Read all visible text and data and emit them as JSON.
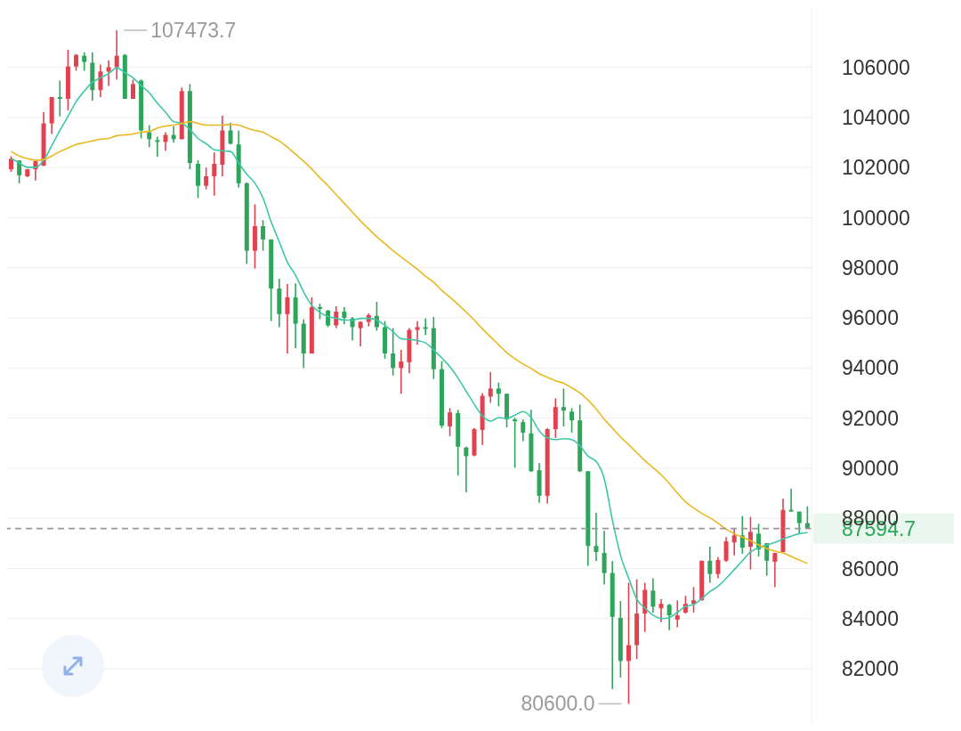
{
  "chart_data": {
    "type": "candlestick",
    "categories": [
      null,
      null,
      null,
      null,
      null,
      null,
      null,
      null,
      null,
      null,
      null,
      null,
      null,
      null,
      null,
      null,
      null,
      null,
      null,
      null,
      null,
      null,
      null,
      null,
      null,
      null,
      null,
      null,
      null,
      null,
      null,
      null,
      null,
      null,
      null,
      null,
      null,
      null,
      null,
      null,
      null,
      null,
      null,
      null,
      null,
      null,
      null,
      null,
      null,
      null,
      null,
      null,
      null,
      null,
      null,
      null,
      null,
      null,
      null,
      null,
      null,
      null,
      null,
      null,
      null,
      null,
      null,
      null,
      null,
      null,
      null,
      null,
      null,
      null,
      null,
      null,
      null,
      null,
      null,
      null,
      null,
      null,
      null,
      null,
      null,
      null,
      null,
      null,
      null,
      null,
      null,
      null,
      null,
      null,
      null,
      null,
      null,
      null,
      null
    ],
    "ohlc": [
      [
        101930,
        102450,
        101830,
        102350
      ],
      [
        102280,
        102290,
        101370,
        101690
      ],
      [
        101650,
        101950,
        101620,
        101930
      ],
      [
        101930,
        102280,
        101480,
        102250
      ],
      [
        102070,
        104210,
        102070,
        103760
      ],
      [
        103760,
        104810,
        103340,
        104810
      ],
      [
        104810,
        105470,
        104040,
        104740
      ],
      [
        104740,
        106700,
        104280,
        106030
      ],
      [
        106030,
        106530,
        105860,
        106490
      ],
      [
        106460,
        106600,
        105860,
        106210
      ],
      [
        106180,
        106600,
        104670,
        105090
      ],
      [
        105090,
        106110,
        104810,
        105830
      ],
      [
        105830,
        106280,
        105260,
        106000
      ],
      [
        106000,
        107473.7,
        105510,
        106460
      ],
      [
        106490,
        106530,
        104740,
        104740
      ],
      [
        104740,
        105510,
        104740,
        105330
      ],
      [
        105470,
        105510,
        103160,
        103480
      ],
      [
        103410,
        103690,
        102810,
        103130
      ],
      [
        103090,
        103230,
        102430,
        103020
      ],
      [
        103020,
        103410,
        102670,
        103300
      ],
      [
        103300,
        103650,
        102990,
        103130
      ],
      [
        103130,
        105190,
        103130,
        105050
      ],
      [
        105050,
        105330,
        101930,
        102180
      ],
      [
        102150,
        102290,
        100780,
        101270
      ],
      [
        101270,
        102000,
        101130,
        101650
      ],
      [
        101650,
        102600,
        100880,
        102150
      ],
      [
        102110,
        104070,
        101650,
        103480
      ],
      [
        103480,
        103790,
        102920,
        102950
      ],
      [
        102920,
        103480,
        101200,
        101370
      ],
      [
        101370,
        101410,
        98150,
        98680
      ],
      [
        98680,
        100530,
        97970,
        99660
      ],
      [
        99660,
        99900,
        98680,
        99130
      ],
      [
        99130,
        99130,
        95870,
        97170
      ],
      [
        97170,
        97560,
        95630,
        96150
      ],
      [
        96150,
        97350,
        94580,
        96820
      ],
      [
        96820,
        97380,
        94790,
        95770
      ],
      [
        95770,
        95940,
        94000,
        94580
      ],
      [
        94580,
        96820,
        94580,
        96430
      ],
      [
        96430,
        96570,
        95950,
        96360
      ],
      [
        96290,
        96320,
        95630,
        95700
      ],
      [
        95700,
        96460,
        95590,
        96250
      ],
      [
        96250,
        96430,
        95740,
        96000
      ],
      [
        95980,
        96040,
        95100,
        95630
      ],
      [
        95590,
        95870,
        94860,
        95840
      ],
      [
        95840,
        96180,
        95660,
        96110
      ],
      [
        96080,
        96640,
        95490,
        95630
      ],
      [
        95630,
        95870,
        94370,
        94580
      ],
      [
        94580,
        95590,
        93700,
        94000
      ],
      [
        94000,
        94720,
        92970,
        94260
      ],
      [
        94230,
        95590,
        93790,
        95520
      ],
      [
        95520,
        95870,
        94930,
        95630
      ],
      [
        95630,
        95980,
        95310,
        95560
      ],
      [
        95590,
        96040,
        93560,
        93950
      ],
      [
        93950,
        94280,
        91600,
        91700
      ],
      [
        91670,
        92400,
        91280,
        92230
      ],
      [
        92200,
        92330,
        89710,
        90860
      ],
      [
        90830,
        90860,
        89040,
        90480
      ],
      [
        90510,
        91600,
        90480,
        91560
      ],
      [
        91530,
        93000,
        90930,
        92890
      ],
      [
        92860,
        93840,
        92610,
        93180
      ],
      [
        93180,
        93420,
        92470,
        92970
      ],
      [
        92970,
        92970,
        91630,
        91950
      ],
      [
        91950,
        92020,
        90020,
        91880
      ],
      [
        91840,
        91950,
        91080,
        91420
      ],
      [
        91390,
        92330,
        89850,
        89880
      ],
      [
        89920,
        90200,
        88620,
        88900
      ],
      [
        88900,
        91600,
        88590,
        91560
      ],
      [
        91560,
        92790,
        91210,
        92440
      ],
      [
        92440,
        93180,
        91670,
        92300
      ],
      [
        92260,
        92400,
        91420,
        91910
      ],
      [
        91910,
        92540,
        89850,
        89880
      ],
      [
        89880,
        89880,
        86110,
        86900
      ],
      [
        86900,
        88230,
        86300,
        86660
      ],
      [
        86620,
        87500,
        85360,
        85820
      ],
      [
        85820,
        86300,
        81190,
        84070
      ],
      [
        84030,
        84700,
        81650,
        82310
      ],
      [
        82310,
        85430,
        80600,
        82940
      ],
      [
        82940,
        85570,
        82380,
        84200
      ],
      [
        84200,
        85430,
        83470,
        85150
      ],
      [
        85120,
        85610,
        84240,
        84480
      ],
      [
        84410,
        84770,
        83860,
        84590
      ],
      [
        84550,
        84590,
        83540,
        84130
      ],
      [
        83960,
        84730,
        83650,
        84130
      ],
      [
        84240,
        84910,
        84200,
        84590
      ],
      [
        84590,
        85260,
        84240,
        84730
      ],
      [
        84730,
        86310,
        84730,
        86310
      ],
      [
        86310,
        86870,
        85430,
        85780
      ],
      [
        85780,
        86450,
        85610,
        86340
      ],
      [
        86310,
        87250,
        86270,
        87080
      ],
      [
        87040,
        87570,
        86520,
        87320
      ],
      [
        87320,
        88090,
        86590,
        86830
      ],
      [
        86870,
        88060,
        85960,
        87460
      ],
      [
        87390,
        87780,
        86480,
        86760
      ],
      [
        87010,
        87010,
        85710,
        86310
      ],
      [
        86270,
        86620,
        85260,
        86620
      ],
      [
        86660,
        88790,
        86660,
        88340
      ],
      [
        88340,
        89180,
        88270,
        88270
      ],
      [
        88270,
        88270,
        87390,
        87810
      ],
      [
        87810,
        88480,
        87594.7,
        87594.7
      ]
    ],
    "colors": [
      "#e0434f",
      "#2ea55a",
      "#e0434f",
      "#e0434f",
      "#e0434f",
      "#e0434f",
      "#2ea55a",
      "#e0434f",
      "#e0434f",
      "#2ea55a",
      "#2ea55a",
      "#e0434f",
      "#e0434f",
      "#e0434f",
      "#2ea55a",
      "#e0434f",
      "#2ea55a",
      "#2ea55a",
      "#2ea55a",
      "#e0434f",
      "#2ea55a",
      "#e0434f",
      "#2ea55a",
      "#2ea55a",
      "#e0434f",
      "#e0434f",
      "#e0434f",
      "#2ea55a",
      "#2ea55a",
      "#2ea55a",
      "#e0434f",
      "#2ea55a",
      "#2ea55a",
      "#2ea55a",
      "#e0434f",
      "#2ea55a",
      "#2ea55a",
      "#e0434f",
      "#2ea55a",
      "#2ea55a",
      "#e0434f",
      "#2ea55a",
      "#2ea55a",
      "#e0434f",
      "#e0434f",
      "#2ea55a",
      "#2ea55a",
      "#2ea55a",
      "#e0434f",
      "#e0434f",
      "#e0434f",
      "#2ea55a",
      "#2ea55a",
      "#2ea55a",
      "#e0434f",
      "#2ea55a",
      "#2ea55a",
      "#e0434f",
      "#e0434f",
      "#e0434f",
      "#2ea55a",
      "#2ea55a",
      "#2ea55a",
      "#2ea55a",
      "#2ea55a",
      "#2ea55a",
      "#e0434f",
      "#e0434f",
      "#2ea55a",
      "#2ea55a",
      "#2ea55a",
      "#2ea55a",
      "#2ea55a",
      "#2ea55a",
      "#2ea55a",
      "#2ea55a",
      "#e0434f",
      "#e0434f",
      "#e0434f",
      "#2ea55a",
      "#e0434f",
      "#2ea55a",
      "#e0434f",
      "#e0434f",
      "#e0434f",
      "#e0434f",
      "#2ea55a",
      "#e0434f",
      "#e0434f",
      "#e0434f",
      "#2ea55a",
      "#e0434f",
      "#2ea55a",
      "#2ea55a",
      "#e0434f",
      "#e0434f",
      "#2ea55a",
      "#2ea55a",
      "#2ea55a"
    ],
    "series": [
      {
        "type": "line",
        "color": "#3cc8a8",
        "values": [
          102360,
          102180,
          102010,
          102010,
          102290,
          102880,
          103480,
          104040,
          104630,
          105050,
          105400,
          105580,
          105750,
          105970,
          105790,
          105580,
          105260,
          104980,
          104560,
          104210,
          103830,
          103760,
          103510,
          103160,
          102950,
          102710,
          102670,
          102640,
          102180,
          101730,
          101380,
          100780,
          99830,
          99030,
          98220,
          97700,
          97030,
          96500,
          96220,
          96050,
          95980,
          95910,
          95910,
          95980,
          95980,
          95910,
          95700,
          95450,
          95170,
          95140,
          95100,
          95000,
          94720,
          94400,
          94050,
          93600,
          93070,
          92550,
          92090,
          91880,
          92020,
          91990,
          92120,
          92260,
          92020,
          91490,
          91210,
          91140,
          91180,
          91140,
          90900,
          90480,
          90270,
          89570,
          87920,
          86520,
          85610,
          84770,
          84420,
          84140,
          84000,
          84040,
          84250,
          84490,
          84560,
          84800,
          85080,
          85290,
          85610,
          85960,
          86310,
          86660,
          86830,
          86940,
          87040,
          87180,
          87290,
          87390,
          87430
        ]
      },
      {
        "type": "line",
        "color": "#eab820",
        "values": [
          102640,
          102460,
          102360,
          102290,
          102320,
          102460,
          102640,
          102780,
          102920,
          102990,
          103060,
          103130,
          103160,
          103270,
          103300,
          103340,
          103410,
          103440,
          103580,
          103650,
          103690,
          103760,
          103830,
          103760,
          103690,
          103690,
          103690,
          103720,
          103690,
          103580,
          103480,
          103410,
          103230,
          103060,
          102810,
          102530,
          102250,
          101940,
          101590,
          101270,
          100920,
          100570,
          100220,
          99870,
          99550,
          99240,
          98960,
          98680,
          98430,
          98190,
          97940,
          97660,
          97420,
          97100,
          96820,
          96540,
          96230,
          95910,
          95560,
          95240,
          94930,
          94610,
          94370,
          94160,
          93980,
          93770,
          93630,
          93490,
          93390,
          93210,
          93000,
          92720,
          92370,
          91950,
          91600,
          91250,
          90940,
          90620,
          90300,
          90020,
          89740,
          89390,
          89010,
          88660,
          88410,
          88200,
          88020,
          87810,
          87570,
          87390,
          87250,
          87110,
          86940,
          86800,
          86690,
          86620,
          86480,
          86340,
          86200
        ]
      }
    ],
    "ylim": [
      79800,
      108400
    ],
    "yticks": [
      82000,
      84000,
      86000,
      88000,
      90000,
      92000,
      94000,
      96000,
      98000,
      100000,
      102000,
      104000,
      106000
    ],
    "grid": "y",
    "tick_labels": "y",
    "ref_lines": [
      {
        "axis": "y",
        "value": 87594.7,
        "label": "87594.7",
        "color": "#999999",
        "line_style": "dashed"
      }
    ],
    "annotations": [
      "107473.7",
      "80600.0"
    ]
  }
}
